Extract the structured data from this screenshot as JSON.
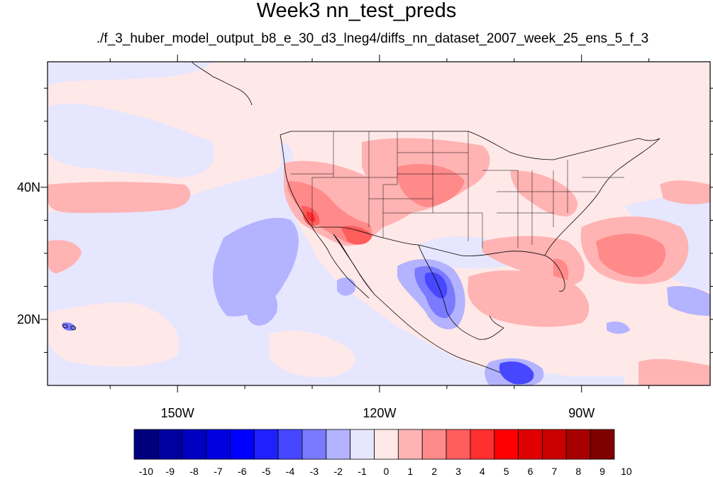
{
  "title": "Week3 nn_test_preds",
  "subtitle": "./f_3_huber_model_output_b8_e_30_d3_lneg4/diffs_nn_dataset_2007_week_25_ens_5_f_3",
  "map": {
    "projection": "cylindrical equidistant",
    "lon_range": [
      -169.3,
      -70.9
    ],
    "lat_range": [
      10,
      59
    ],
    "background_color": "#ffe8e8"
  },
  "axes": {
    "x_ticks": [
      {
        "lon": -150,
        "label": "150W"
      },
      {
        "lon": -120,
        "label": "120W"
      },
      {
        "lon": -90,
        "label": "90W"
      }
    ],
    "y_ticks": [
      {
        "lat": 40,
        "label": "40N"
      },
      {
        "lat": 20,
        "label": "20N"
      }
    ]
  },
  "colorbar": {
    "labels": [
      "-10",
      "-9",
      "-8",
      "-7",
      "-6",
      "-5",
      "-4",
      "-3",
      "-2",
      "-1",
      "0",
      "1",
      "2",
      "3",
      "4",
      "5",
      "6",
      "7",
      "8",
      "9",
      "10"
    ],
    "colors": [
      "#00007f",
      "#0000a0",
      "#0000c0",
      "#0000e0",
      "#0000ff",
      "#2020ff",
      "#4747ff",
      "#7a7aff",
      "#b3b3ff",
      "#e6e6ff",
      "#ffe8e8",
      "#ffb3b3",
      "#ff8a8a",
      "#ff5c5c",
      "#ff3030",
      "#ff0000",
      "#e00000",
      "#c80000",
      "#a80000",
      "#800000"
    ]
  }
}
